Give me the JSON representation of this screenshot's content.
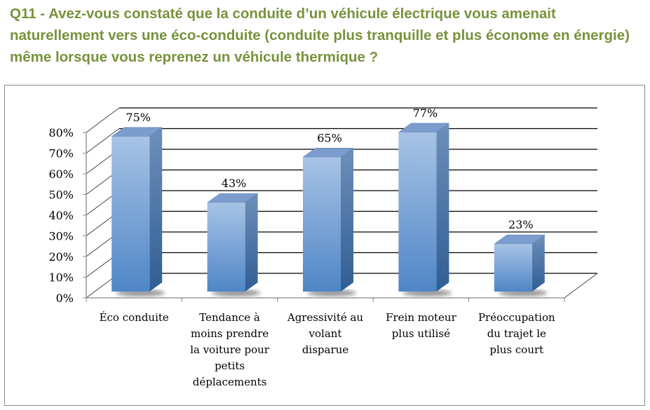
{
  "title": "Q11 - Avez-vous constaté que la conduite d’un véhicule électrique vous amenait naturellement vers une éco-conduite (conduite plus tranquille et plus économe en énergie) même lorsque vous reprenez un véhicule thermique ?",
  "chart_data": {
    "type": "bar",
    "style": "3d-column",
    "title": "Q11 - Avez-vous constaté que la conduite d’un véhicule électrique vous amenait naturellement vers une éco-conduite (conduite plus tranquille et plus économe en énergie) même lorsque vous reprenez un véhicule thermique ?",
    "categories": [
      [
        "Éco conduite"
      ],
      [
        "Tendance à",
        "moins prendre",
        "la voiture pour",
        "petits",
        "déplacements"
      ],
      [
        "Agressivité au",
        "volant",
        "disparue"
      ],
      [
        "Frein moteur",
        "plus utilisé"
      ],
      [
        "Préoccupation",
        "du trajet le",
        "plus court"
      ]
    ],
    "values": [
      75,
      43,
      65,
      77,
      23
    ],
    "data_labels": [
      "75%",
      "43%",
      "65%",
      "77%",
      "23%"
    ],
    "ylim": [
      0,
      80
    ],
    "yticks": [
      "0%",
      "10%",
      "20%",
      "30%",
      "40%",
      "50%",
      "60%",
      "70%",
      "80%"
    ],
    "grid": true,
    "legend": "none",
    "colors": {
      "bar": "#4f81bd",
      "title": "#77933c"
    }
  }
}
